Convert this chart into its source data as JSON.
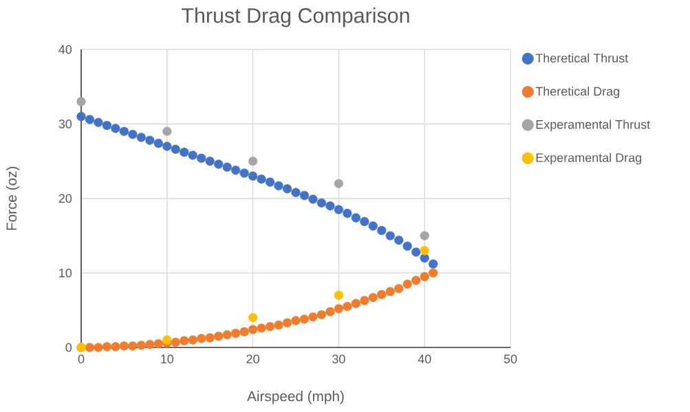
{
  "chart_data": {
    "type": "scatter",
    "title": "Thrust Drag Comparison",
    "xlabel": "Airspeed (mph)",
    "ylabel": "Force (oz)",
    "xlim": [
      0,
      50
    ],
    "ylim": [
      0,
      40
    ],
    "xticks": [
      0,
      10,
      20,
      30,
      40,
      50
    ],
    "yticks": [
      0,
      10,
      20,
      30,
      40
    ],
    "grid": true,
    "legend": "right",
    "series": [
      {
        "name": "Theretical Thrust",
        "color": "#4472c4",
        "x": [
          0,
          1,
          2,
          3,
          4,
          5,
          6,
          7,
          8,
          9,
          10,
          11,
          12,
          13,
          14,
          15,
          16,
          17,
          18,
          19,
          20,
          21,
          22,
          23,
          24,
          25,
          26,
          27,
          28,
          29,
          30,
          31,
          32,
          33,
          34,
          35,
          36,
          37,
          38,
          39,
          40,
          41
        ],
        "values": [
          31.0,
          30.6,
          30.2,
          29.8,
          29.4,
          29.0,
          28.6,
          28.2,
          27.8,
          27.4,
          27.0,
          26.6,
          26.2,
          25.8,
          25.4,
          25.0,
          24.6,
          24.2,
          23.8,
          23.4,
          23.0,
          22.6,
          22.2,
          21.7,
          21.3,
          20.8,
          20.4,
          19.9,
          19.4,
          19.0,
          18.5,
          18.0,
          17.4,
          16.9,
          16.3,
          15.7,
          15.0,
          14.4,
          13.6,
          12.8,
          12.0,
          11.2
        ]
      },
      {
        "name": "Theretical Drag",
        "color": "#ed7d31",
        "x": [
          0,
          1,
          2,
          3,
          4,
          5,
          6,
          7,
          8,
          9,
          10,
          11,
          12,
          13,
          14,
          15,
          16,
          17,
          18,
          19,
          20,
          21,
          22,
          23,
          24,
          25,
          26,
          27,
          28,
          29,
          30,
          31,
          32,
          33,
          34,
          35,
          36,
          37,
          38,
          39,
          40,
          41
        ],
        "values": [
          0.0,
          0.0,
          0.0,
          0.1,
          0.1,
          0.2,
          0.2,
          0.3,
          0.4,
          0.5,
          0.6,
          0.7,
          0.9,
          1.0,
          1.2,
          1.3,
          1.5,
          1.7,
          1.9,
          2.1,
          2.4,
          2.6,
          2.8,
          3.0,
          3.3,
          3.6,
          3.8,
          4.1,
          4.4,
          4.8,
          5.2,
          5.5,
          5.9,
          6.3,
          6.7,
          7.1,
          7.5,
          7.9,
          8.5,
          9.0,
          9.5,
          10.0
        ]
      },
      {
        "name": "Experamental Thrust",
        "color": "#a5a5a5",
        "x": [
          0,
          10,
          20,
          30,
          40
        ],
        "values": [
          33,
          29,
          25,
          22,
          15
        ]
      },
      {
        "name": "Experamental Drag",
        "color": "#ffc000",
        "x": [
          0,
          10,
          20,
          30,
          40
        ],
        "values": [
          0,
          1,
          4,
          7,
          13
        ]
      }
    ]
  }
}
